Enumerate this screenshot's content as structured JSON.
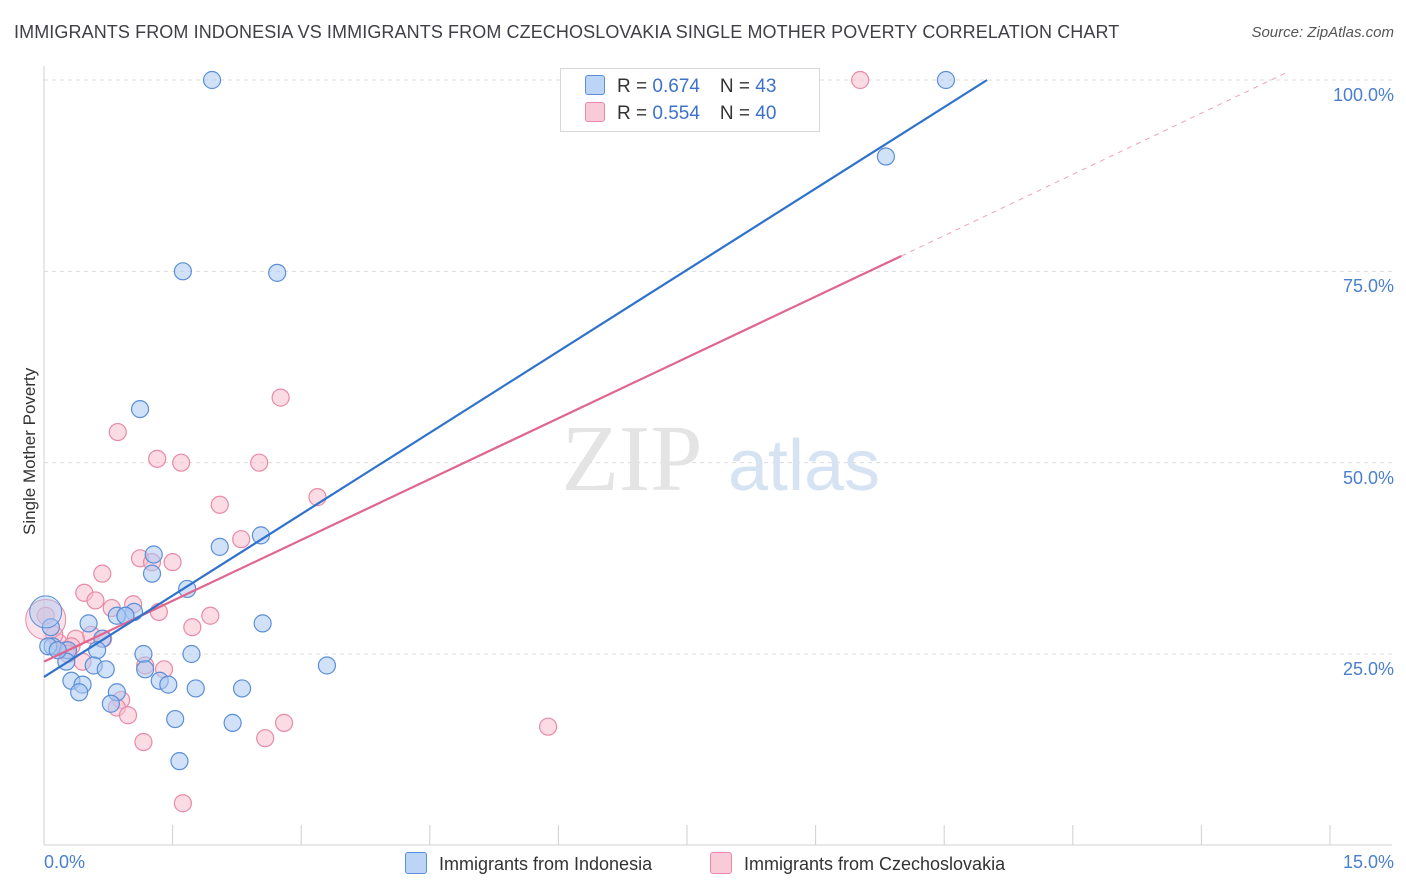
{
  "title": "IMMIGRANTS FROM INDONESIA VS IMMIGRANTS FROM CZECHOSLOVAKIA SINGLE MOTHER POVERTY CORRELATION CHART",
  "source": "Source: ZipAtlas.com",
  "watermark": {
    "zip": "ZIP",
    "atlas": "atlas"
  },
  "colors": {
    "indonesia_fill": "#a9c8f2",
    "indonesia_stroke": "#5b8fd8",
    "indonesia_line": "#2f72cc",
    "czech_fill": "#f7bfd0",
    "czech_stroke": "#e88aa8",
    "czech_line": "#e0668f",
    "axis_text": "#4a7fcf",
    "grid": "#dcdcdc"
  },
  "legend_stats": [
    {
      "r_label": "R = ",
      "r_value": "0.674",
      "n_label": "N = ",
      "n_value": "43"
    },
    {
      "r_label": "R = ",
      "r_value": "0.554",
      "n_label": "N = ",
      "n_value": "40"
    }
  ],
  "chart_data": {
    "type": "scatter",
    "title": "IMMIGRANTS FROM INDONESIA VS IMMIGRANTS FROM CZECHOSLOVAKIA SINGLE MOTHER POVERTY CORRELATION CHART",
    "xlabel": "",
    "ylabel": "Single Mother Poverty",
    "xlim": [
      0,
      15
    ],
    "ylim": [
      0,
      102
    ],
    "x_tick_labels": [
      "0.0%",
      "15.0%"
    ],
    "y_ticks": [
      25,
      50,
      75,
      100
    ],
    "y_tick_labels": [
      "25.0%",
      "50.0%",
      "75.0%",
      "100.0%"
    ],
    "grid": true,
    "legend_position": "bottom",
    "series": [
      {
        "name": "Immigrants from Indonesia",
        "color": "#a9c8f2",
        "trend": {
          "x": [
            0.0,
            11.0
          ],
          "y": [
            22.0,
            100.0
          ],
          "style": "solid"
        },
        "points": [
          [
            1.96,
            100.0
          ],
          [
            10.52,
            100.0
          ],
          [
            9.82,
            90.0
          ],
          [
            1.62,
            75.0
          ],
          [
            2.72,
            74.8
          ],
          [
            1.12,
            57.0
          ],
          [
            2.53,
            40.5
          ],
          [
            2.05,
            39.0
          ],
          [
            1.28,
            38.0
          ],
          [
            1.26,
            35.5
          ],
          [
            1.67,
            33.5
          ],
          [
            2.55,
            29.0
          ],
          [
            0.08,
            28.5
          ],
          [
            1.05,
            30.5
          ],
          [
            0.95,
            30.0
          ],
          [
            0.85,
            30.0
          ],
          [
            0.52,
            29.0
          ],
          [
            0.68,
            27.0
          ],
          [
            0.1,
            26.0
          ],
          [
            0.28,
            25.5
          ],
          [
            0.62,
            25.5
          ],
          [
            1.72,
            25.0
          ],
          [
            1.16,
            25.0
          ],
          [
            3.3,
            23.5
          ],
          [
            0.26,
            24.0
          ],
          [
            0.58,
            23.5
          ],
          [
            0.72,
            23.0
          ],
          [
            1.18,
            23.0
          ],
          [
            0.32,
            21.5
          ],
          [
            1.35,
            21.5
          ],
          [
            0.45,
            21.0
          ],
          [
            1.45,
            21.0
          ],
          [
            1.77,
            20.5
          ],
          [
            2.31,
            20.5
          ],
          [
            0.41,
            20.0
          ],
          [
            0.85,
            20.0
          ],
          [
            0.78,
            18.5
          ],
          [
            1.53,
            16.5
          ],
          [
            2.2,
            16.0
          ],
          [
            1.58,
            11.0
          ],
          [
            0.05,
            26.0
          ],
          [
            0.16,
            25.5
          ],
          [
            0.95,
            30.0
          ]
        ]
      },
      {
        "name": "Immigrants from Czechoslovakia",
        "color": "#f7bfd0",
        "trend": {
          "x": [
            0.0,
            10.0
          ],
          "y": [
            24.0,
            77.0
          ],
          "dashed_to": [
            14.5,
            101.0
          ]
        },
        "points": [
          [
            9.52,
            100.0
          ],
          [
            2.76,
            58.5
          ],
          [
            0.86,
            54.0
          ],
          [
            1.32,
            50.5
          ],
          [
            1.6,
            50.0
          ],
          [
            2.51,
            50.0
          ],
          [
            3.19,
            45.5
          ],
          [
            2.05,
            44.5
          ],
          [
            2.3,
            40.0
          ],
          [
            1.12,
            37.5
          ],
          [
            1.26,
            37.0
          ],
          [
            1.5,
            37.0
          ],
          [
            0.68,
            35.5
          ],
          [
            0.47,
            33.0
          ],
          [
            0.6,
            32.0
          ],
          [
            1.04,
            31.5
          ],
          [
            0.79,
            31.0
          ],
          [
            1.34,
            30.5
          ],
          [
            1.94,
            30.0
          ],
          [
            1.73,
            28.5
          ],
          [
            0.02,
            30.0
          ],
          [
            0.55,
            27.5
          ],
          [
            0.37,
            27.0
          ],
          [
            0.69,
            27.0
          ],
          [
            0.17,
            26.5
          ],
          [
            0.32,
            26.0
          ],
          [
            0.25,
            25.5
          ],
          [
            0.45,
            24.0
          ],
          [
            1.18,
            23.5
          ],
          [
            1.4,
            23.0
          ],
          [
            0.9,
            19.0
          ],
          [
            0.85,
            18.0
          ],
          [
            0.98,
            17.0
          ],
          [
            2.8,
            16.0
          ],
          [
            5.88,
            15.5
          ],
          [
            2.58,
            14.0
          ],
          [
            1.16,
            13.5
          ],
          [
            1.62,
            5.5
          ],
          [
            0.12,
            27.5
          ],
          [
            0.28,
            25.0
          ]
        ]
      }
    ]
  },
  "bottom_legend": [
    {
      "label": "Immigrants from Indonesia"
    },
    {
      "label": "Immigrants from Czechoslovakia"
    }
  ]
}
